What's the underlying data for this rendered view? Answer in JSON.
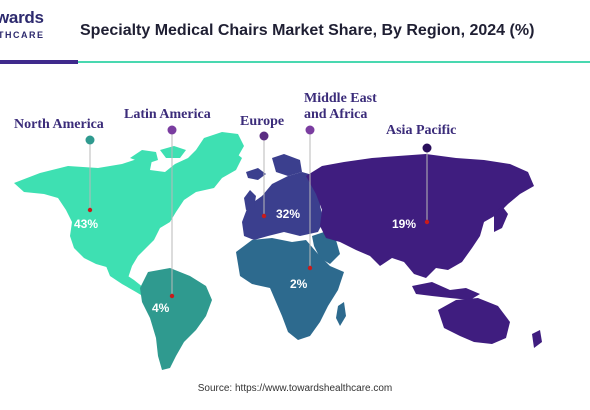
{
  "brand": {
    "word": "wards",
    "sub": "THCARE"
  },
  "title": "Specialty Medical Chairs Market Share, By Region, 2024 (%)",
  "source": "Source: https://www.towardshealthcare.com",
  "colors": {
    "north_america": "#3ee0b2",
    "latin_america": "#2f9a8f",
    "europe": "#3b3f8e",
    "middle_east_africa": "#2d6a8e",
    "asia_pacific": "#3f1d7f",
    "marker": "#c81b1b",
    "label": "#3b2c7a"
  },
  "regions": {
    "north_america": {
      "label": "North America",
      "share": "43%"
    },
    "latin_america": {
      "label": "Latin America",
      "share": "4%"
    },
    "europe": {
      "label": "Europe",
      "share": "32%"
    },
    "mea": {
      "label_line1": "Middle East",
      "label_line2": "and Africa",
      "share": "2%"
    },
    "asia_pacific": {
      "label": "Asia Pacific",
      "share": "19%"
    }
  }
}
